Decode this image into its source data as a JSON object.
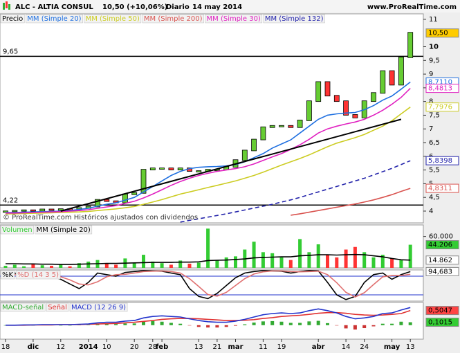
{
  "header": {
    "title": "ALC - ALTIA CONSUL",
    "quote": "10,50 (+10,06%)",
    "period": "Diario",
    "date": "14 may 2014",
    "site": "www.ProRealTime.com"
  },
  "chart_data": [
    {
      "type": "candlestick",
      "categories": [
        "18",
        null,
        null,
        "dic",
        null,
        null,
        "12",
        null,
        null,
        "2014",
        null,
        "10",
        null,
        null,
        "20",
        null,
        "28",
        "feb",
        null,
        null,
        null,
        "13",
        null,
        "21",
        null,
        "mar",
        null,
        null,
        "11",
        null,
        "19",
        null,
        null,
        null,
        "abr",
        null,
        null,
        "14",
        null,
        "24",
        null,
        null,
        "may",
        null,
        "13"
      ],
      "ylim": [
        3.57,
        11.2
      ],
      "yticks": [
        4,
        {
          "value": 4.5,
          "label": "4,5"
        },
        5,
        {
          "value": 5.5,
          "label": "5,5"
        },
        6,
        {
          "value": 6.5,
          "label": "6,5"
        },
        7,
        {
          "value": 7.5,
          "label": "7,5"
        },
        8,
        {
          "value": 8.5,
          "label": "8,5"
        },
        9,
        {
          "value": 9.5,
          "label": "9,5"
        },
        10,
        11
      ],
      "hlines": [
        {
          "value": 9.65,
          "label": "9,65"
        },
        {
          "value": 4.22,
          "label": "4,22"
        }
      ],
      "trend_line": [
        4.0,
        7.35
      ],
      "note": "© ProRealTime.com Históricos ajustados con dividendos",
      "series": [
        {
          "name": "Precio",
          "color": "#66cc33",
          "down_color": "#ff3333",
          "last_label": "10,50",
          "label_color": "#ffcc00",
          "values": [
            3.98,
            4.0,
            4.02,
            4.0,
            4.05,
            4.03,
            4.06,
            4.05,
            4.1,
            4.15,
            4.4,
            4.35,
            4.3,
            4.6,
            4.65,
            5.5,
            5.55,
            5.55,
            5.5,
            5.55,
            5.45,
            5.45,
            5.5,
            5.5,
            5.6,
            5.85,
            6.2,
            6.6,
            7.05,
            7.1,
            7.1,
            7.05,
            7.3,
            8.0,
            8.7,
            8.2,
            8.0,
            7.5,
            7.4,
            8.0,
            8.3,
            9.1,
            8.6,
            9.6,
            10.5
          ]
        },
        {
          "name": "MM (Simple 20)",
          "color": "#1e6fe0",
          "last_label": "8,7110",
          "values": [
            3.95,
            3.95,
            3.96,
            3.97,
            3.98,
            3.99,
            4.0,
            4.02,
            4.06,
            4.1,
            4.18,
            4.25,
            4.3,
            4.4,
            4.5,
            4.7,
            4.9,
            5.1,
            5.3,
            5.45,
            5.55,
            5.6,
            5.62,
            5.63,
            5.65,
            5.7,
            5.8,
            5.95,
            6.1,
            6.3,
            6.45,
            6.6,
            6.85,
            7.1,
            7.35,
            7.5,
            7.55,
            7.58,
            7.6,
            7.7,
            7.85,
            8.05,
            8.2,
            8.45,
            8.711
          ]
        },
        {
          "name": "MM (Simple 50)",
          "color": "#cccc22",
          "last_label": "7,7976",
          "values": [
            3.9,
            3.9,
            3.91,
            3.92,
            3.93,
            3.94,
            3.95,
            3.96,
            3.97,
            3.99,
            4.02,
            4.05,
            4.08,
            4.12,
            4.17,
            4.25,
            4.33,
            4.42,
            4.52,
            4.62,
            4.7,
            4.78,
            4.86,
            4.94,
            5.02,
            5.1,
            5.2,
            5.3,
            5.42,
            5.55,
            5.68,
            5.8,
            5.92,
            6.05,
            6.2,
            6.35,
            6.48,
            6.58,
            6.68,
            6.8,
            6.95,
            7.1,
            7.3,
            7.55,
            7.7976
          ]
        },
        {
          "name": "MM (Simple 200)",
          "color": "#d9534f",
          "last_label": "4,8311",
          "values": [
            null,
            null,
            null,
            null,
            null,
            null,
            null,
            null,
            null,
            null,
            null,
            null,
            null,
            null,
            null,
            null,
            null,
            null,
            null,
            null,
            null,
            null,
            null,
            null,
            null,
            null,
            null,
            null,
            null,
            null,
            null,
            3.85,
            3.9,
            3.96,
            4.02,
            4.08,
            4.14,
            4.2,
            4.26,
            4.33,
            4.41,
            4.5,
            4.6,
            4.72,
            4.8311
          ]
        },
        {
          "name": "MM (Simple 30)",
          "color": "#e020c0",
          "last_label": "8,4813",
          "values": [
            3.93,
            3.93,
            3.94,
            3.95,
            3.96,
            3.97,
            3.98,
            4.0,
            4.02,
            4.05,
            4.1,
            4.15,
            4.2,
            4.28,
            4.36,
            4.48,
            4.62,
            4.78,
            4.94,
            5.08,
            5.2,
            5.3,
            5.38,
            5.45,
            5.5,
            5.55,
            5.62,
            5.72,
            5.85,
            5.98,
            6.1,
            6.25,
            6.42,
            6.62,
            6.85,
            7.0,
            7.1,
            7.18,
            7.25,
            7.35,
            7.5,
            7.68,
            7.9,
            8.15,
            8.4813
          ]
        },
        {
          "name": "MM (Simple 132)",
          "color": "#2222aa",
          "style": "dashed",
          "last_label": "5,8398",
          "values": [
            null,
            null,
            null,
            null,
            null,
            null,
            null,
            null,
            null,
            null,
            null,
            null,
            null,
            null,
            null,
            null,
            null,
            null,
            null,
            3.6,
            3.66,
            3.72,
            3.78,
            3.84,
            3.9,
            3.97,
            4.04,
            4.11,
            4.18,
            4.25,
            4.33,
            4.41,
            4.5,
            4.6,
            4.7,
            4.8,
            4.9,
            5.0,
            5.1,
            5.2,
            5.32,
            5.44,
            5.56,
            5.7,
            5.8398
          ]
        }
      ]
    },
    {
      "type": "volume",
      "ylim": [
        0,
        82000
      ],
      "yticks": [
        {
          "value": 60000,
          "label": "60.000"
        }
      ],
      "series": [
        {
          "name": "Volumen",
          "color": "#33cc33",
          "down_color": "#ff3333",
          "last_label": "44.206",
          "label_color": "#33cc33",
          "values": [
            4000,
            6000,
            3000,
            8000,
            5000,
            4000,
            7000,
            3000,
            9000,
            12000,
            15000,
            8000,
            6000,
            18000,
            10000,
            25000,
            12000,
            9000,
            6000,
            14000,
            8000,
            10000,
            75000,
            15000,
            20000,
            22000,
            35000,
            50000,
            30000,
            28000,
            20000,
            15000,
            55000,
            30000,
            45000,
            25000,
            20000,
            35000,
            40000,
            30000,
            20000,
            25000,
            18000,
            15000,
            44206
          ]
        },
        {
          "name": "MM (Simple 20)",
          "color": "#000000",
          "last_label": "14.862",
          "label_color": "#ffffff",
          "values": [
            8000,
            8000,
            7500,
            7500,
            7000,
            7000,
            6500,
            6500,
            7000,
            7500,
            8000,
            8500,
            8500,
            9000,
            9500,
            10000,
            10500,
            10500,
            10500,
            11000,
            11000,
            11500,
            14000,
            14500,
            15000,
            16000,
            17000,
            19000,
            20000,
            20500,
            21000,
            21000,
            23000,
            24000,
            25000,
            25000,
            24500,
            25000,
            25500,
            25000,
            23000,
            21000,
            18000,
            15500,
            14862
          ]
        }
      ]
    },
    {
      "type": "stochastic",
      "ylim": [
        0,
        100
      ],
      "levels": [
        20,
        80
      ],
      "series": [
        {
          "name": "%K",
          "color": "#000000",
          "last_label": "94,683",
          "label_color": "#ffffff",
          "values": [
            85,
            90,
            80,
            85,
            75,
            80,
            70,
            55,
            40,
            60,
            90,
            85,
            80,
            92,
            95,
            98,
            97,
            96,
            90,
            85,
            40,
            15,
            8,
            25,
            50,
            75,
            90,
            95,
            98,
            97,
            96,
            90,
            95,
            98,
            97,
            60,
            20,
            5,
            15,
            60,
            85,
            90,
            70,
            85,
            94.683
          ]
        },
        {
          "name": "%D (14 3 5)",
          "color": "#e07070",
          "values": [
            80,
            85,
            85,
            85,
            80,
            80,
            78,
            68,
            55,
            52,
            62,
            78,
            85,
            86,
            90,
            95,
            96,
            97,
            95,
            90,
            72,
            47,
            21,
            16,
            28,
            50,
            72,
            87,
            94,
            97,
            97,
            95,
            94,
            95,
            96,
            85,
            59,
            28,
            13,
            27,
            53,
            78,
            82,
            82,
            86
          ]
        }
      ]
    },
    {
      "type": "macd",
      "ylim": [
        -0.48,
        0.78
      ],
      "series": [
        {
          "name": "MACD-señal",
          "color": "#33aa33",
          "down_color": "#cc3333",
          "kind": "bar",
          "last_label": "0,1015",
          "label_color": "#33cc33",
          "values": [
            0,
            0,
            0.01,
            0,
            0.01,
            0.01,
            0,
            0,
            0.01,
            0.01,
            0.04,
            0.05,
            0.04,
            0.06,
            0.06,
            0.12,
            0.14,
            0.12,
            0.08,
            0.05,
            -0.01,
            -0.06,
            -0.08,
            -0.08,
            -0.06,
            -0.02,
            0.03,
            0.09,
            0.13,
            0.14,
            0.12,
            0.08,
            0.08,
            0.13,
            0.15,
            0.07,
            -0.01,
            -0.11,
            -0.15,
            -0.1,
            -0.04,
            0.05,
            0.05,
            0.12,
            0.1015
          ]
        },
        {
          "name": "Señal",
          "color": "#e03030",
          "last_label": "0,5047",
          "label_color": "#ff4444",
          "values": [
            0,
            0,
            0,
            0.01,
            0.01,
            0.01,
            0.02,
            0.02,
            0.02,
            0.03,
            0.04,
            0.05,
            0.06,
            0.08,
            0.1,
            0.13,
            0.16,
            0.2,
            0.22,
            0.23,
            0.23,
            0.22,
            0.2,
            0.18,
            0.16,
            0.16,
            0.17,
            0.19,
            0.23,
            0.26,
            0.3,
            0.32,
            0.34,
            0.37,
            0.41,
            0.43,
            0.43,
            0.41,
            0.37,
            0.35,
            0.34,
            0.35,
            0.37,
            0.4,
            0.5047
          ]
        },
        {
          "name": "MACD (12 26 9)",
          "color": "#2233cc",
          "values": [
            0,
            0,
            0.01,
            0.01,
            0.02,
            0.02,
            0.02,
            0.02,
            0.03,
            0.04,
            0.08,
            0.1,
            0.1,
            0.14,
            0.16,
            0.25,
            0.3,
            0.32,
            0.3,
            0.28,
            0.22,
            0.16,
            0.12,
            0.1,
            0.1,
            0.14,
            0.2,
            0.28,
            0.36,
            0.4,
            0.42,
            0.4,
            0.42,
            0.5,
            0.56,
            0.5,
            0.42,
            0.3,
            0.22,
            0.25,
            0.3,
            0.4,
            0.42,
            0.52,
            0.6062
          ]
        }
      ]
    }
  ]
}
